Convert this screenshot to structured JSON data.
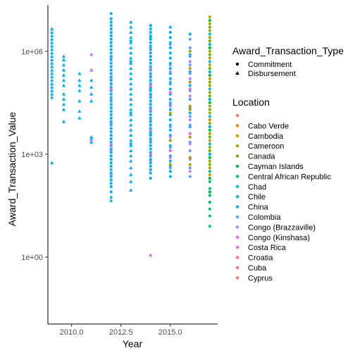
{
  "chart_data": {
    "type": "scatter",
    "title": "",
    "xlabel": "Year",
    "ylabel": "Award_Transaction_Value",
    "xlim": [
      2008.8,
      2017.4
    ],
    "ylim_log10": [
      -1.95,
      7.35
    ],
    "y_scale": "log10",
    "x_ticks": [
      2010,
      2012.5,
      2015
    ],
    "x_tick_labels": [
      "2010.0",
      "2012.5",
      "2015.0"
    ],
    "y_ticks": [
      1,
      1000,
      1000000
    ],
    "y_tick_labels": [
      "1e+00",
      "1e+03",
      "1e+06"
    ],
    "grid": false,
    "legend_position": "right",
    "shape_legend": {
      "title": "Award_Transaction_Type",
      "items": [
        {
          "label": "Commitment",
          "shape": "circle"
        },
        {
          "label": "Disbursement",
          "shape": "triangle"
        }
      ]
    },
    "color_legend": {
      "title": "Location",
      "items": [
        {
          "label": "",
          "color": "#F8766D"
        },
        {
          "label": "Cabo Verde",
          "color": "#E58700"
        },
        {
          "label": "Cambodia",
          "color": "#C99800"
        },
        {
          "label": "Cameroon",
          "color": "#A3A500"
        },
        {
          "label": "Canada",
          "color": "#6BB100"
        },
        {
          "label": "Cayman Islands",
          "color": "#00BA38"
        },
        {
          "label": "Central African Republic",
          "color": "#00BF7D"
        },
        {
          "label": "Chad",
          "color": "#00C0AF"
        },
        {
          "label": "Chile",
          "color": "#00BCD8"
        },
        {
          "label": "China",
          "color": "#00B0F6"
        },
        {
          "label": "Colombia",
          "color": "#619CFF"
        },
        {
          "label": "Congo (Brazzaville)",
          "color": "#B983FF"
        },
        {
          "label": "Congo (Kinshasa)",
          "color": "#E76BF3"
        },
        {
          "label": "Costa Rica",
          "color": "#FD61D1"
        },
        {
          "label": "Croatia",
          "color": "#FF67A4"
        },
        {
          "label": "Cuba",
          "color": "#FF6C91"
        },
        {
          "label": "Cyprus",
          "color": "#F8766D"
        }
      ]
    },
    "point_groups": [
      {
        "x": 2009,
        "shape": "triangle",
        "color": "#00B0F6",
        "log10_values": [
          6.65,
          6.55,
          6.45,
          6.35,
          6.25,
          6.15,
          6.05,
          5.95,
          5.85,
          5.75,
          5.65,
          5.55,
          5.45,
          5.35,
          5.25,
          5.15,
          5.05,
          4.95,
          4.85,
          4.75,
          4.65,
          2.75
        ]
      },
      {
        "x": 2009.6,
        "shape": "triangle",
        "color": "#00B0F6",
        "log10_values": [
          5.85,
          5.75,
          5.6,
          5.45,
          5.3,
          5.15,
          5.0,
          4.75,
          4.6,
          4.45,
          4.3,
          3.95
        ]
      },
      {
        "x": 2010.4,
        "shape": "triangle",
        "color": "#00B0F6",
        "log10_values": [
          5.35,
          5.15,
          5.0,
          4.85,
          4.55,
          4.25,
          4.05
        ]
      },
      {
        "x": 2011,
        "shape": "triangle",
        "color": "#00B0F6",
        "log10_values": [
          5.45,
          5.15,
          4.95,
          4.75,
          4.55,
          3.5,
          3.45,
          3.35
        ]
      },
      {
        "x": 2011,
        "shape": "circle",
        "color": "#B983FF",
        "log10_values": [
          5.9,
          5.45,
          3.4
        ]
      },
      {
        "x": 2012,
        "shape": "circle",
        "color": "#00B0F6",
        "log10_values": [
          7.1,
          6.95,
          6.85,
          6.75,
          6.65,
          6.55,
          6.45,
          6.35,
          6.25,
          6.15,
          6.05,
          5.95,
          5.85,
          5.75,
          5.65,
          5.55,
          5.45,
          5.35,
          5.25,
          5.15,
          5.05,
          4.95,
          4.85,
          4.75,
          4.65,
          4.55,
          4.45,
          4.35,
          4.25,
          4.15,
          4.05,
          3.95,
          3.85,
          3.75,
          3.65,
          3.55,
          3.45,
          3.35,
          3.25,
          3.15,
          3.05,
          2.95,
          2.85,
          2.75,
          2.65,
          2.55,
          2.45,
          2.35,
          2.25,
          2.15,
          2.05,
          1.9
        ]
      },
      {
        "x": 2012,
        "shape": "triangle",
        "color": "#00B0F6",
        "log10_values": [
          1.75,
          1.65
        ]
      },
      {
        "x": 2012,
        "shape": "circle",
        "color": "#619CFF",
        "log10_values": [
          5.8,
          5.2,
          4.6,
          3.9,
          3.1,
          2.4
        ]
      },
      {
        "x": 2012,
        "shape": "circle",
        "color": "#E76BF3",
        "log10_values": [
          4.9,
          3.3
        ]
      },
      {
        "x": 2013,
        "shape": "triangle",
        "color": "#00B0F6",
        "log10_values": [
          6.85,
          6.7,
          6.55,
          6.4,
          6.25,
          6.1,
          5.95,
          5.8,
          5.65,
          5.5,
          5.35,
          5.2,
          5.05,
          4.9,
          4.75,
          4.6,
          4.45,
          4.3,
          4.15,
          4.0,
          3.85,
          3.7,
          3.55,
          3.4,
          3.25,
          3.1,
          2.95,
          2.8,
          2.6,
          2.4,
          2.2,
          1.95
        ]
      },
      {
        "x": 2013,
        "shape": "circle",
        "color": "#00B0F6",
        "log10_values": [
          6.3,
          5.7,
          4.2,
          3.3
        ]
      },
      {
        "x": 2014,
        "shape": "circle",
        "color": "#00B0F6",
        "log10_values": [
          6.75,
          6.65,
          6.55,
          6.45,
          6.35,
          6.25,
          6.15,
          6.05,
          5.95,
          5.85,
          5.75,
          5.65,
          5.55,
          5.45,
          5.35,
          5.25,
          5.15,
          5.05,
          4.95,
          4.85,
          4.75,
          4.65,
          4.55,
          4.45,
          4.35,
          4.25,
          4.15,
          4.05,
          3.95,
          3.85,
          3.75,
          3.65,
          3.55,
          3.45,
          3.35,
          3.25,
          3.15,
          3.05,
          2.95,
          2.85,
          2.75,
          2.65,
          2.55,
          2.45,
          2.3
        ]
      },
      {
        "x": 2014,
        "shape": "circle",
        "color": "#619CFF",
        "log10_values": [
          6.1,
          5.3,
          4.7,
          4.0,
          3.4,
          2.8
        ]
      },
      {
        "x": 2014,
        "shape": "circle",
        "color": "#B983FF",
        "log10_values": [
          5.5,
          4.3,
          3.7
        ]
      },
      {
        "x": 2014,
        "shape": "circle",
        "color": "#E76BF3",
        "log10_values": [
          5.0,
          3.0,
          0.05
        ]
      },
      {
        "x": 2014,
        "shape": "circle",
        "color": "#00BCD8",
        "log10_values": [
          6.4,
          4.9,
          3.6
        ]
      },
      {
        "x": 2015,
        "shape": "circle",
        "color": "#00B0F6",
        "log10_values": [
          6.7,
          6.55,
          6.4,
          6.25,
          6.1,
          5.95,
          5.8,
          5.65,
          5.5,
          5.35,
          5.2,
          5.05,
          4.9,
          4.75,
          4.6,
          4.45,
          4.3,
          4.15,
          4.0,
          3.85,
          3.7,
          3.55,
          3.4,
          3.25,
          3.1,
          2.95,
          2.8,
          2.65,
          2.5,
          2.35
        ]
      },
      {
        "x": 2015,
        "shape": "circle",
        "color": "#619CFF",
        "log10_values": [
          6.2,
          5.6,
          5.1,
          4.5,
          3.8,
          3.2,
          2.6
        ]
      },
      {
        "x": 2015,
        "shape": "circle",
        "color": "#B983FF",
        "log10_values": [
          5.4,
          4.4,
          3.5,
          2.9
        ]
      },
      {
        "x": 2015,
        "shape": "circle",
        "color": "#E76BF3",
        "log10_values": [
          4.8,
          3.1
        ]
      },
      {
        "x": 2015,
        "shape": "circle",
        "color": "#A3A500",
        "log10_values": [
          4.2,
          3.4,
          2.7
        ]
      },
      {
        "x": 2016,
        "shape": "circle",
        "color": "#00B0F6",
        "log10_values": [
          6.5,
          5.9,
          5.4,
          5.0,
          4.6,
          4.2,
          3.8
        ]
      },
      {
        "x": 2016,
        "shape": "circle",
        "color": "#619CFF",
        "log10_values": [
          6.35,
          6.1,
          5.85,
          5.6,
          5.35,
          5.1,
          4.85,
          4.6,
          4.35,
          4.1,
          3.85,
          3.6,
          3.35,
          3.1,
          2.85,
          2.6,
          2.35
        ]
      },
      {
        "x": 2016,
        "shape": "circle",
        "color": "#B983FF",
        "log10_values": [
          5.7,
          5.2,
          4.7,
          4.0,
          3.3,
          2.9
        ]
      },
      {
        "x": 2016,
        "shape": "circle",
        "color": "#E76BF3",
        "log10_values": [
          4.9,
          3.6,
          2.5
        ]
      },
      {
        "x": 2016,
        "shape": "circle",
        "color": "#A3A500",
        "log10_values": [
          6.0,
          5.1,
          4.3,
          3.5,
          2.7
        ]
      },
      {
        "x": 2016,
        "shape": "circle",
        "color": "#C99800",
        "log10_values": [
          5.5,
          4.4,
          2.9
        ]
      },
      {
        "x": 2017,
        "shape": "circle",
        "color": "#A3A500",
        "log10_values": [
          7.0,
          6.8,
          6.6,
          6.4,
          6.2,
          6.0,
          5.8,
          5.6,
          5.4,
          5.2,
          5.0,
          4.8,
          4.6,
          4.4,
          4.2,
          4.0,
          3.8,
          3.6,
          3.4,
          3.2,
          3.0,
          2.8,
          2.6
        ]
      },
      {
        "x": 2017,
        "shape": "circle",
        "color": "#6BB100",
        "log10_values": [
          6.7,
          6.3,
          5.9,
          5.5,
          5.1,
          4.7,
          4.3,
          3.9,
          3.5,
          3.1,
          2.7
        ]
      },
      {
        "x": 2017,
        "shape": "circle",
        "color": "#00BA38",
        "log10_values": [
          6.9,
          6.1,
          5.3,
          4.5,
          3.7,
          2.9,
          2.3,
          1.9
        ]
      },
      {
        "x": 2017,
        "shape": "circle",
        "color": "#00BF7D",
        "log10_values": [
          2.5,
          2.2,
          2.0,
          1.8,
          1.6,
          1.4,
          1.2,
          0.9
        ]
      },
      {
        "x": 2017,
        "shape": "circle",
        "color": "#00BCD8",
        "log10_values": [
          6.5,
          5.7,
          4.9,
          4.1,
          3.3
        ]
      },
      {
        "x": 2017,
        "shape": "circle",
        "color": "#00B0F6",
        "log10_values": [
          6.2,
          5.4,
          4.6,
          3.8,
          3.0
        ]
      },
      {
        "x": 2017,
        "shape": "circle",
        "color": "#C99800",
        "log10_values": [
          5.2,
          4.0,
          2.4
        ]
      }
    ]
  }
}
